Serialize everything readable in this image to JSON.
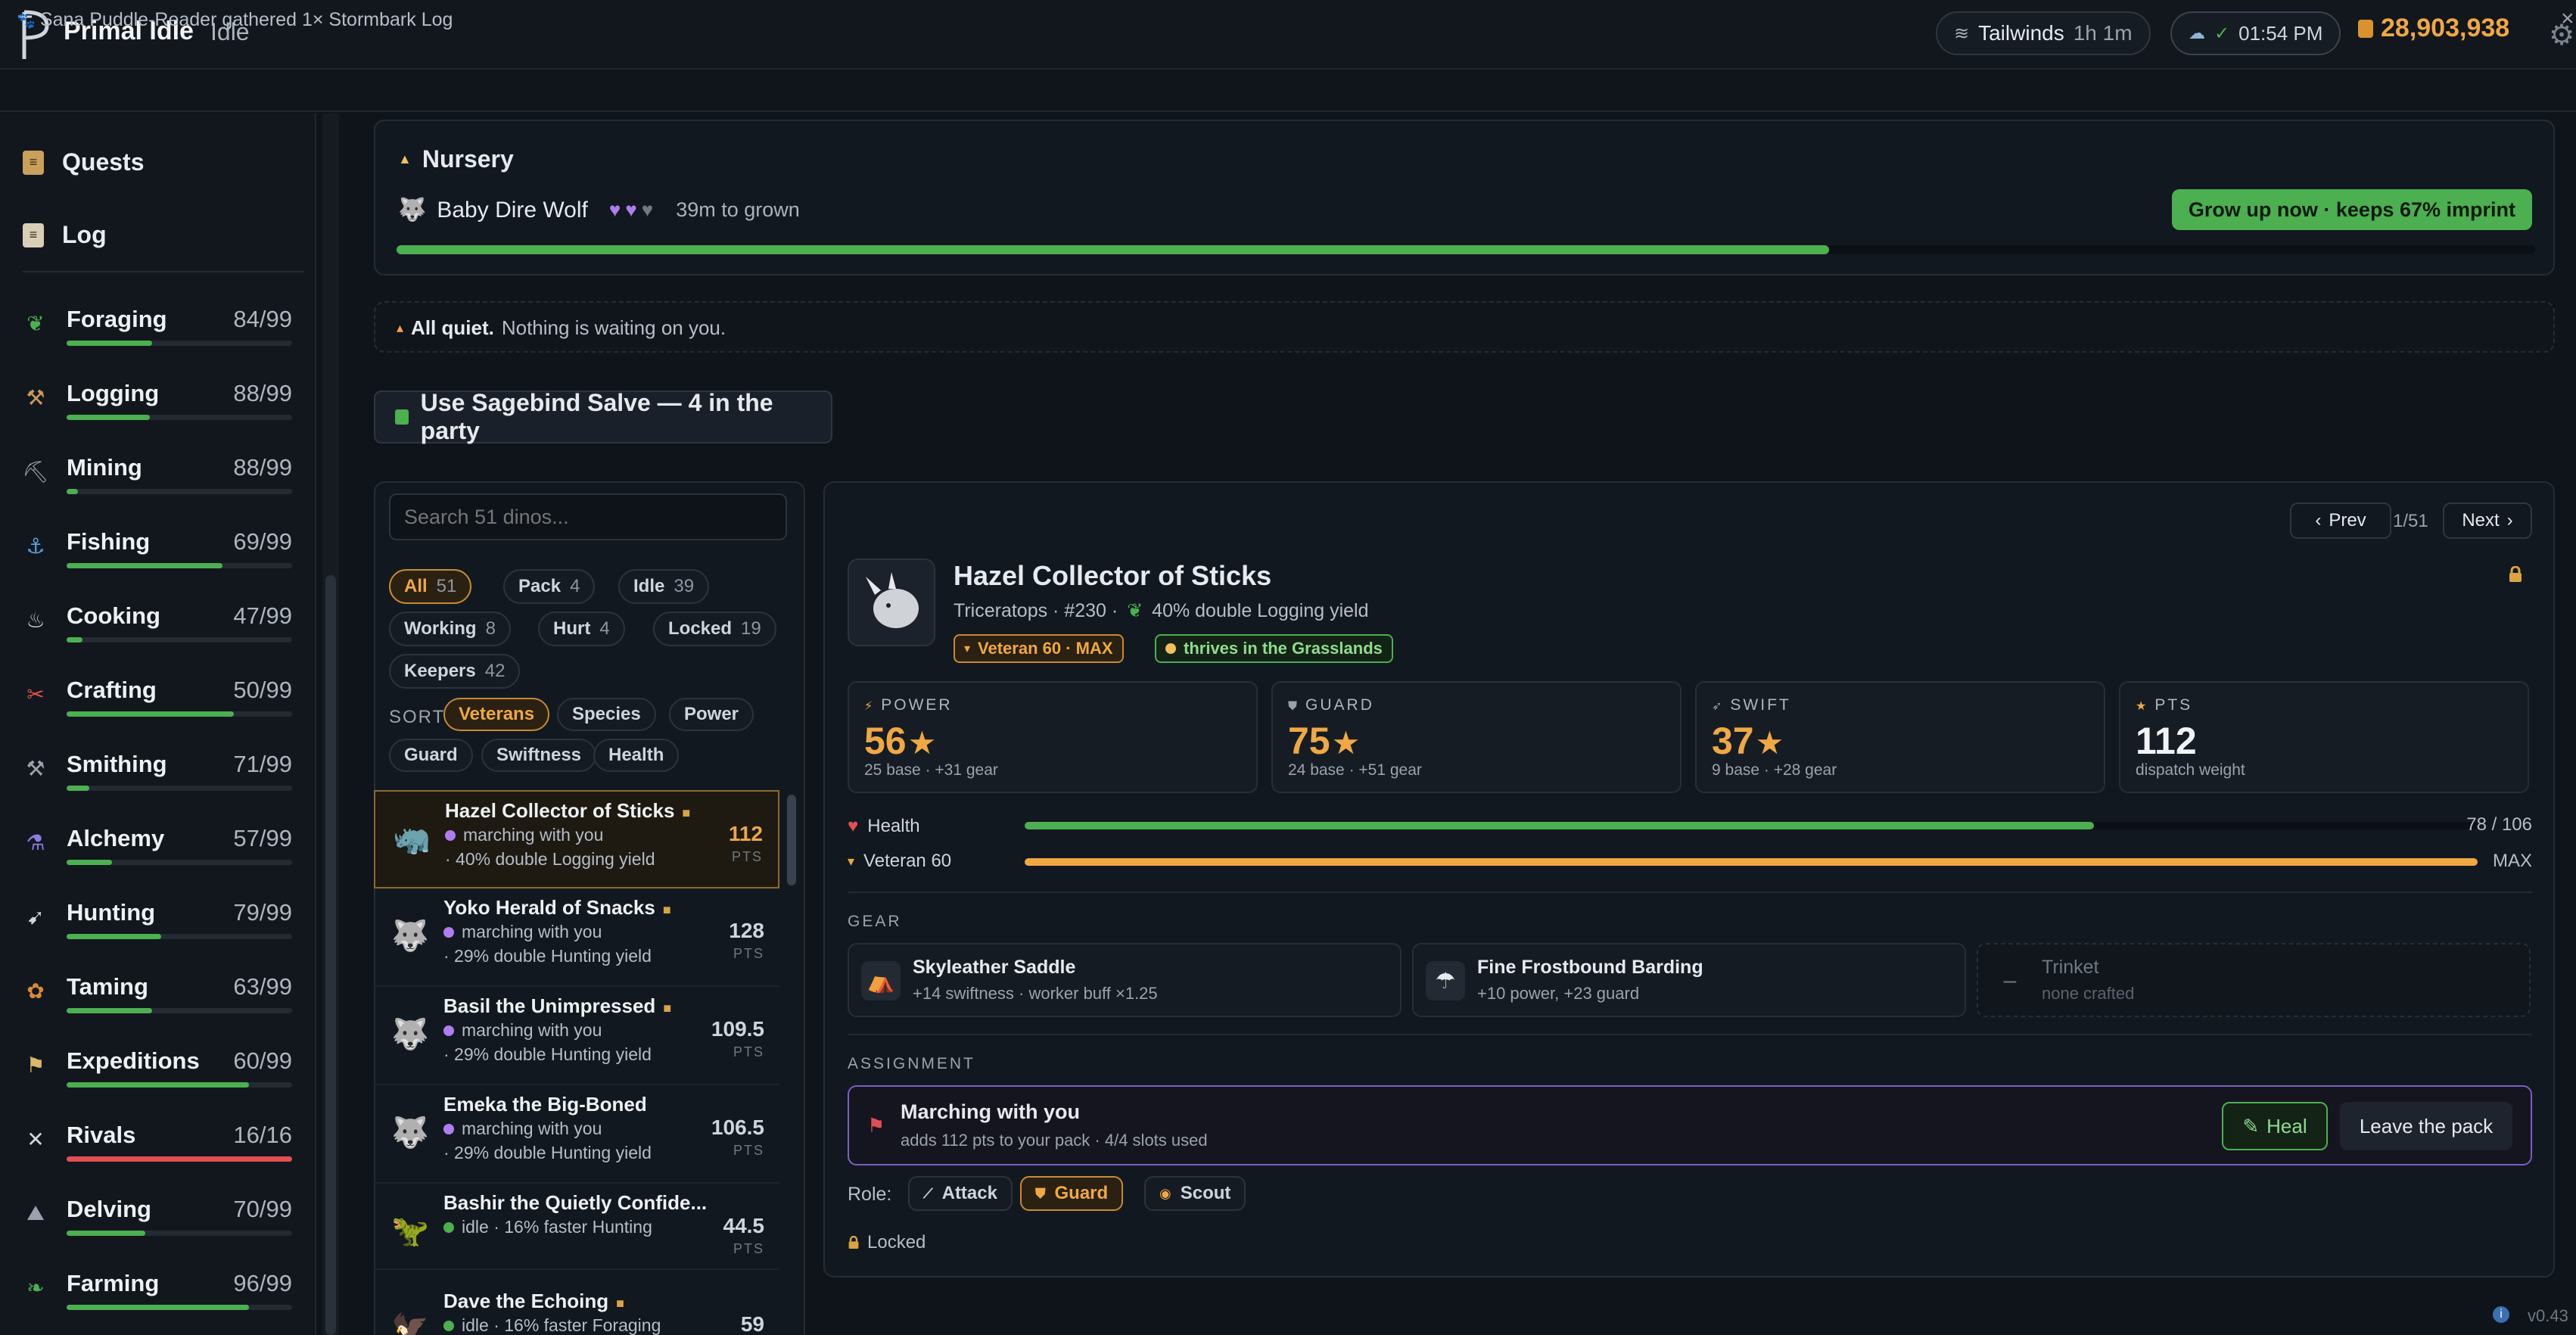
{
  "app": {
    "title": "Primal Idle",
    "status": "Idle"
  },
  "topbar": {
    "weather": "Tailwinds",
    "weather_time": "1h 1m",
    "clock": "01:54 PM",
    "gold": "28,903,938"
  },
  "ticker": {
    "message": "Sana Puddle-Reader gathered 1× Stormbark Log"
  },
  "nav": {
    "quests": "Quests",
    "log": "Log"
  },
  "skills": [
    {
      "name": "Foraging",
      "level": "84/99",
      "progress": 0.38
    },
    {
      "name": "Logging",
      "level": "88/99",
      "progress": 0.37
    },
    {
      "name": "Mining",
      "level": "88/99",
      "progress": 0.05
    },
    {
      "name": "Fishing",
      "level": "69/99",
      "progress": 0.69
    },
    {
      "name": "Cooking",
      "level": "47/99",
      "progress": 0.07
    },
    {
      "name": "Crafting",
      "level": "50/99",
      "progress": 0.74
    },
    {
      "name": "Smithing",
      "level": "71/99",
      "progress": 0.1
    },
    {
      "name": "Alchemy",
      "level": "57/99",
      "progress": 0.2
    },
    {
      "name": "Hunting",
      "level": "79/99",
      "progress": 0.42
    },
    {
      "name": "Taming",
      "level": "63/99",
      "progress": 0.38
    },
    {
      "name": "Expeditions",
      "level": "60/99",
      "progress": 0.81
    },
    {
      "name": "Rivals",
      "level": "16/16",
      "progress": 1.0,
      "color": "#e05050"
    },
    {
      "name": "Delving",
      "level": "70/99",
      "progress": 0.35
    },
    {
      "name": "Farming",
      "level": "96/99",
      "progress": 0.81
    }
  ],
  "nursery": {
    "title": "Nursery",
    "creature": "Baby Dire Wolf",
    "hearts_filled": 2,
    "hearts_total": 3,
    "time_left": "39m to grown",
    "grow_button": "Grow up now · keeps 67% imprint",
    "progress": 0.67
  },
  "notice": {
    "bold": "All quiet.",
    "text": "Nothing is waiting on you."
  },
  "salve_button": "Use Sagebind Salve — 4 in the party",
  "dinos": {
    "search_placeholder": "Search 51 dinos...",
    "filters": [
      {
        "label": "All",
        "count": "51",
        "active": true
      },
      {
        "label": "Pack",
        "count": "4"
      },
      {
        "label": "Idle",
        "count": "39"
      },
      {
        "label": "Working",
        "count": "8"
      },
      {
        "label": "Hurt",
        "count": "4"
      },
      {
        "label": "Locked",
        "count": "19"
      },
      {
        "label": "Keepers",
        "count": "42"
      }
    ],
    "sort_label": "SORT",
    "sorts": [
      "Veterans",
      "Species",
      "Power",
      "Guard",
      "Swiftness",
      "Health"
    ],
    "pts_label": "PTS",
    "list": [
      {
        "name": "Hazel Collector of Sticks",
        "status": "marching with you",
        "effect": "· 40% double Logging yield",
        "pts": "112",
        "locked": true,
        "selected": true,
        "status_color": "#b07cf0"
      },
      {
        "name": "Yoko Herald of Snacks",
        "status": "marching with you",
        "effect": "· 29% double Hunting yield",
        "pts": "128",
        "locked": true,
        "status_color": "#b07cf0"
      },
      {
        "name": "Basil the Unimpressed",
        "status": "marching with you",
        "effect": "· 29% double Hunting yield",
        "pts": "109.5",
        "locked": true,
        "status_color": "#b07cf0"
      },
      {
        "name": "Emeka the Big-Boned",
        "status": "marching with you",
        "effect": "· 29% double Hunting yield",
        "pts": "106.5",
        "locked": false,
        "status_color": "#b07cf0"
      },
      {
        "name": "Bashir the Quietly Confide...",
        "status": "idle · 16% faster Hunting",
        "effect": "",
        "pts": "44.5",
        "locked": false,
        "status_color": "#4caf50"
      },
      {
        "name": "Dave the Echoing",
        "status": "idle · 16% faster Foraging",
        "effect": "",
        "pts": "59",
        "locked": true,
        "status_color": "#4caf50"
      }
    ]
  },
  "detail": {
    "prev": "Prev",
    "next": "Next",
    "page": "1/51",
    "name": "Hazel Collector of Sticks",
    "subtitle": "Triceratops · #230 ·",
    "trait": "40% double Logging yield",
    "badge_veteran": "Veteran 60 · MAX",
    "badge_biome": "thrives in the Grasslands",
    "stats": [
      {
        "label": "POWER",
        "value": "56",
        "sub": "25 base · +31 gear",
        "star": true
      },
      {
        "label": "GUARD",
        "value": "75",
        "sub": "24 base · +51 gear",
        "star": true
      },
      {
        "label": "SWIFT",
        "value": "37",
        "sub": "9 base · +28 gear",
        "star": true
      },
      {
        "label": "PTS",
        "value": "112",
        "sub": "dispatch weight",
        "star": false
      }
    ],
    "health_label": "Health",
    "health_value": "78 / 106",
    "health_fraction": 0.736,
    "veteran_label": "Veteran 60",
    "veteran_value": "MAX",
    "veteran_fraction": 1.0,
    "gear_header": "GEAR",
    "gear": [
      {
        "name": "Skyleather Saddle",
        "desc": "+14 swiftness · worker buff ×1.25",
        "icon": "saddle-icon"
      },
      {
        "name": "Fine Frostbound Barding",
        "desc": "+10 power, +23 guard",
        "icon": "barding-icon"
      },
      {
        "name": "Trinket",
        "desc": "none crafted",
        "icon": "empty-slot-icon",
        "empty": true
      }
    ],
    "assignment_header": "ASSIGNMENT",
    "assignment_title": "Marching with you",
    "assignment_desc": "adds 112 pts to your pack · 4/4 slots used",
    "heal": "Heal",
    "leave": "Leave the pack",
    "role_label": "Role:",
    "roles": [
      {
        "label": "Attack"
      },
      {
        "label": "Guard",
        "active": true
      },
      {
        "label": "Scout"
      }
    ],
    "locked_label": "Locked"
  },
  "version": "v0.43"
}
